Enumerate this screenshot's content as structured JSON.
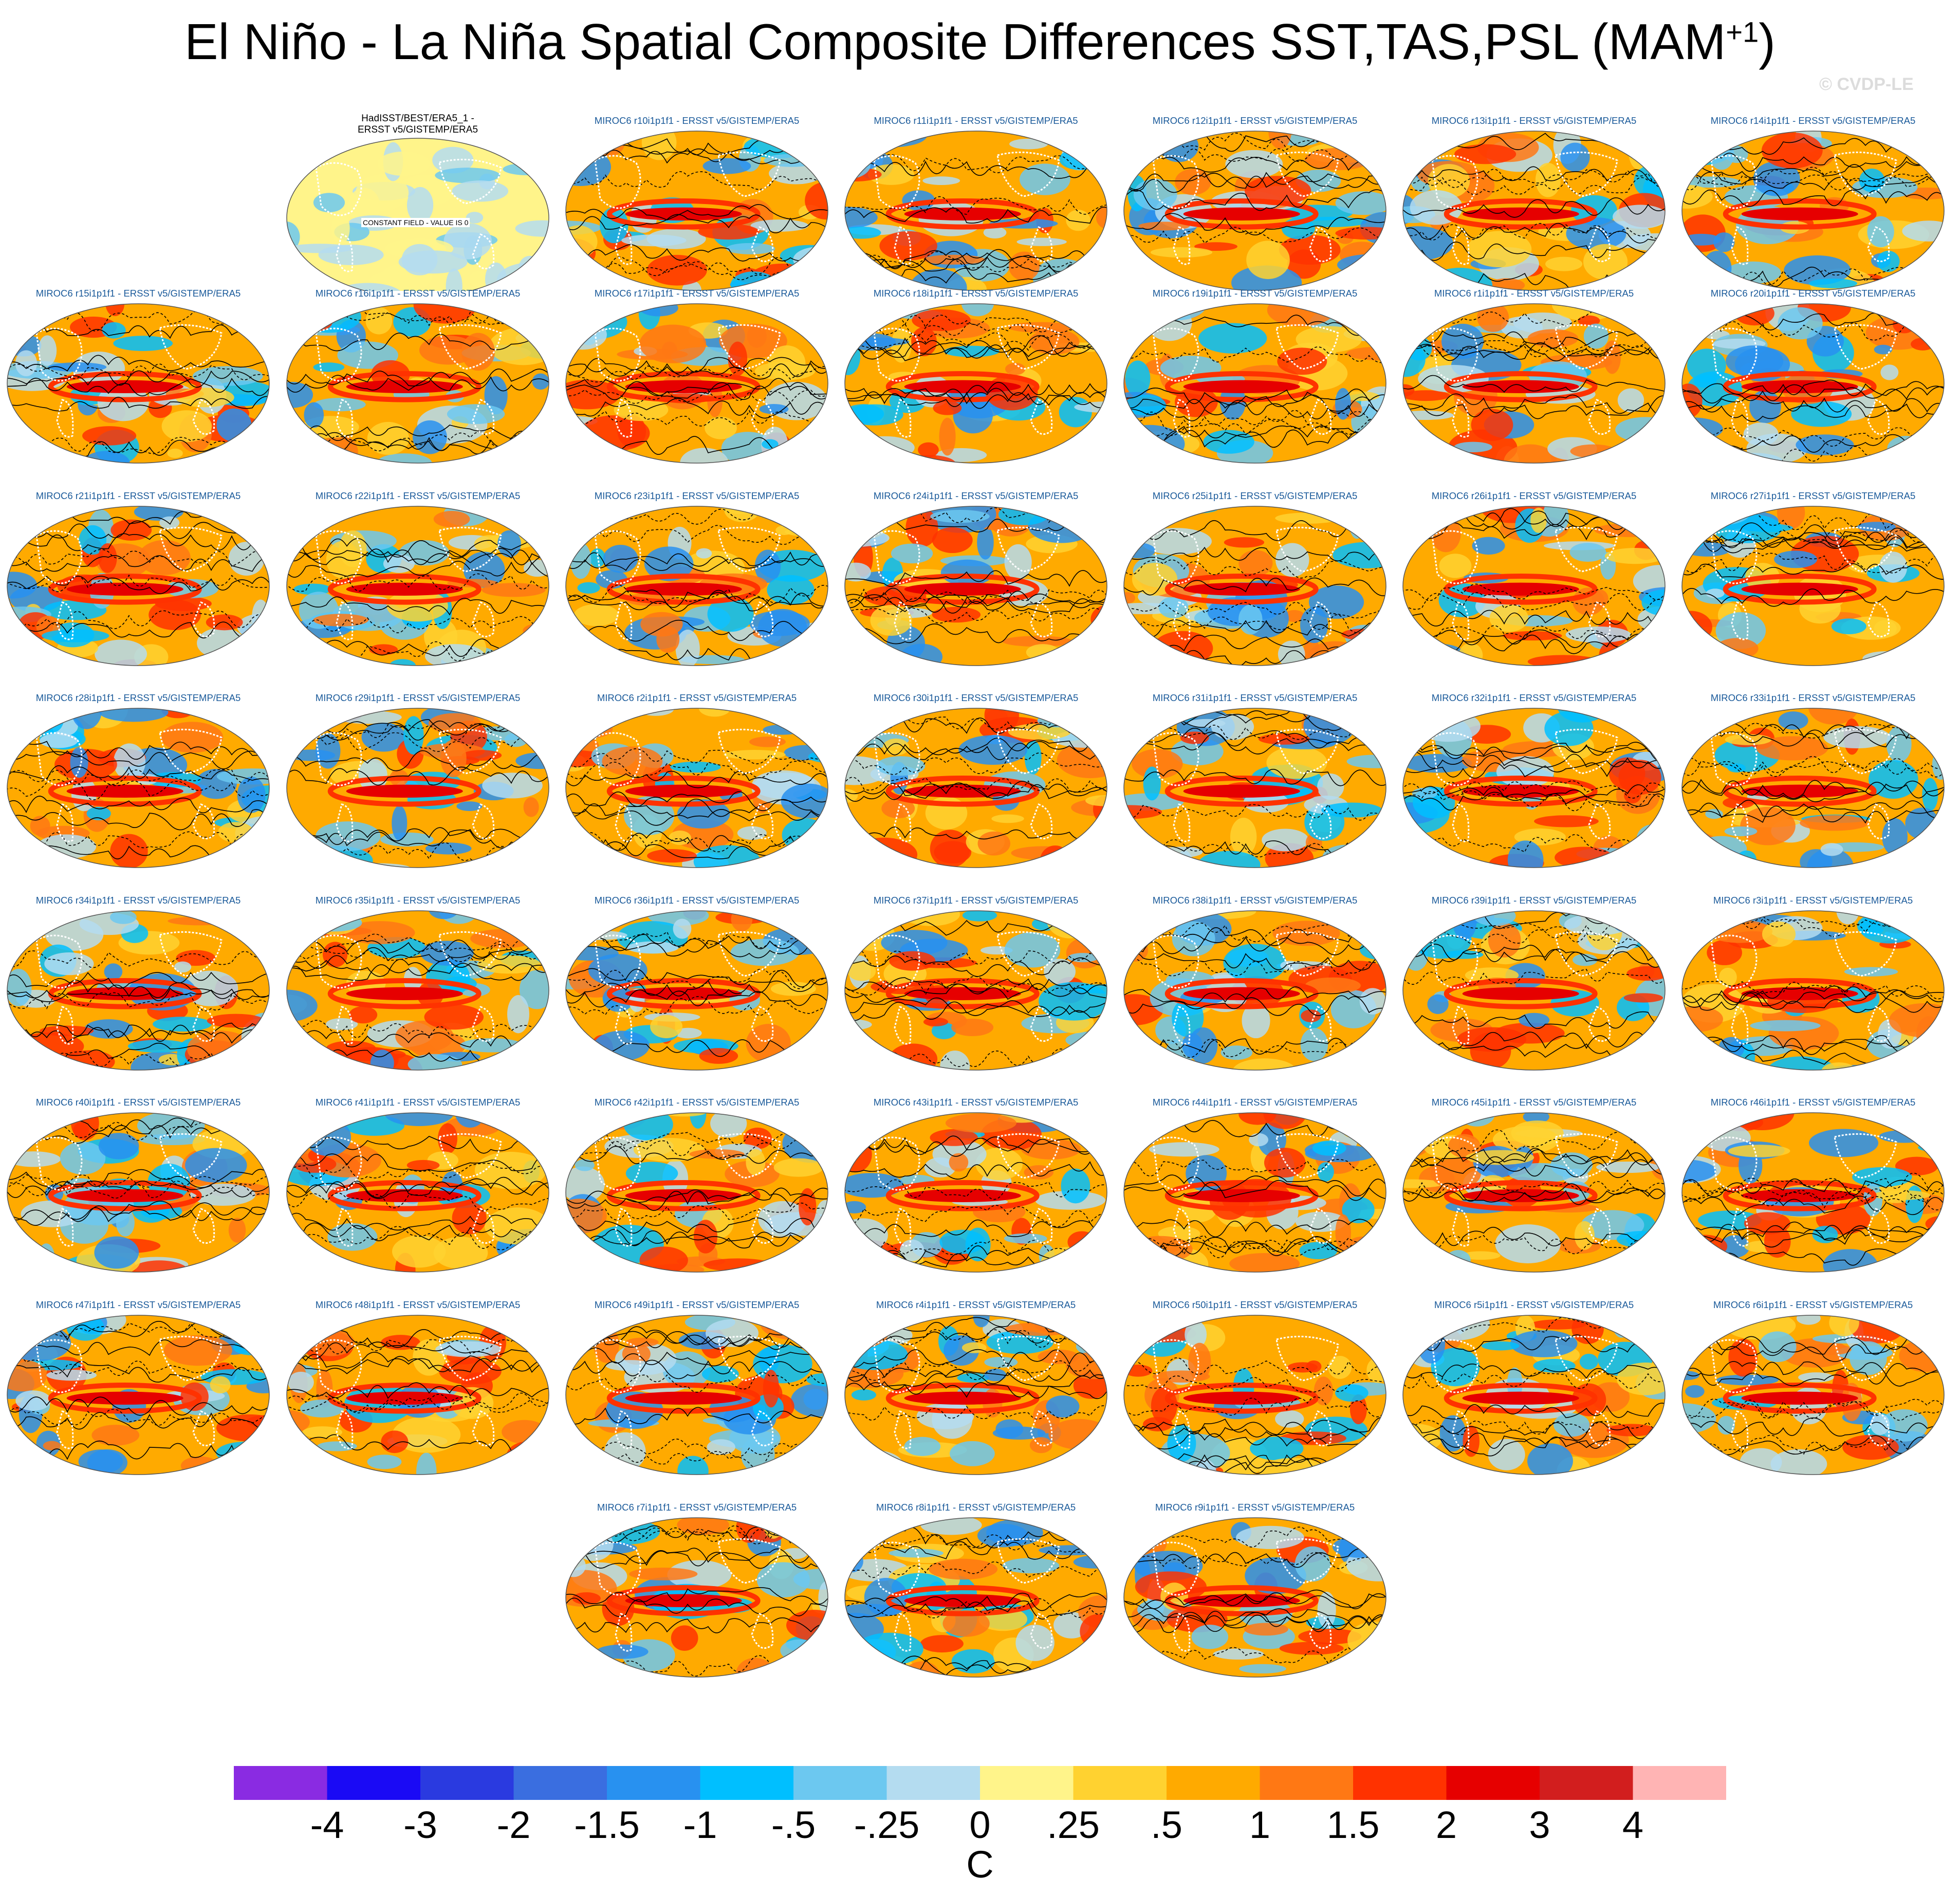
{
  "title": "El Niño - La Niña Spatial Composite Differences SST,TAS,PSL (MAM",
  "title_superscript": "+1",
  "title_close": ")",
  "watermark": "© CVDP-LE",
  "observation_panel": {
    "title_line1": "HadISST/BEST/ERA5_1 -",
    "title_line2": "ERSST v5/GISTEMP/ERA5",
    "annotation": "CONSTANT FIELD - VALUE IS 0"
  },
  "panel_suffix": " - ERSST v5/GISTEMP/ERA5",
  "members": [
    "MIROC6 r10i1p1f1",
    "MIROC6 r11i1p1f1",
    "MIROC6 r12i1p1f1",
    "MIROC6 r13i1p1f1",
    "MIROC6 r14i1p1f1",
    "MIROC6 r15i1p1f1",
    "MIROC6 r16i1p1f1",
    "MIROC6 r17i1p1f1",
    "MIROC6 r18i1p1f1",
    "MIROC6 r19i1p1f1",
    "MIROC6 r1i1p1f1",
    "MIROC6 r20i1p1f1",
    "MIROC6 r21i1p1f1",
    "MIROC6 r22i1p1f1",
    "MIROC6 r23i1p1f1",
    "MIROC6 r24i1p1f1",
    "MIROC6 r25i1p1f1",
    "MIROC6 r26i1p1f1",
    "MIROC6 r27i1p1f1",
    "MIROC6 r28i1p1f1",
    "MIROC6 r29i1p1f1",
    "MIROC6 r2i1p1f1",
    "MIROC6 r30i1p1f1",
    "MIROC6 r31i1p1f1",
    "MIROC6 r32i1p1f1",
    "MIROC6 r33i1p1f1",
    "MIROC6 r34i1p1f1",
    "MIROC6 r35i1p1f1",
    "MIROC6 r36i1p1f1",
    "MIROC6 r37i1p1f1",
    "MIROC6 r38i1p1f1",
    "MIROC6 r39i1p1f1",
    "MIROC6 r3i1p1f1",
    "MIROC6 r40i1p1f1",
    "MIROC6 r41i1p1f1",
    "MIROC6 r42i1p1f1",
    "MIROC6 r43i1p1f1",
    "MIROC6 r44i1p1f1",
    "MIROC6 r45i1p1f1",
    "MIROC6 r46i1p1f1",
    "MIROC6 r47i1p1f1",
    "MIROC6 r48i1p1f1",
    "MIROC6 r49i1p1f1",
    "MIROC6 r4i1p1f1",
    "MIROC6 r50i1p1f1",
    "MIROC6 r5i1p1f1",
    "MIROC6 r6i1p1f1",
    "MIROC6 r7i1p1f1",
    "MIROC6 r8i1p1f1",
    "MIROC6 r9i1p1f1"
  ],
  "colorbar": {
    "colors": [
      "#8a2be2",
      "#1a0af5",
      "#2a3ae0",
      "#3a6ee0",
      "#2891f0",
      "#00bfff",
      "#6cc8f0",
      "#b4dcf0",
      "#fff48a",
      "#ffd230",
      "#ffaa00",
      "#ff7814",
      "#ff3200",
      "#e60000",
      "#d21e1e",
      "#ffb4b4"
    ],
    "labels": [
      "-4",
      "-3",
      "-2",
      "-1.5",
      "-1",
      "-.5",
      "-.25",
      "0",
      ".25",
      ".5",
      "1",
      "1.5",
      "2",
      "3",
      "4"
    ],
    "units": "C"
  }
}
